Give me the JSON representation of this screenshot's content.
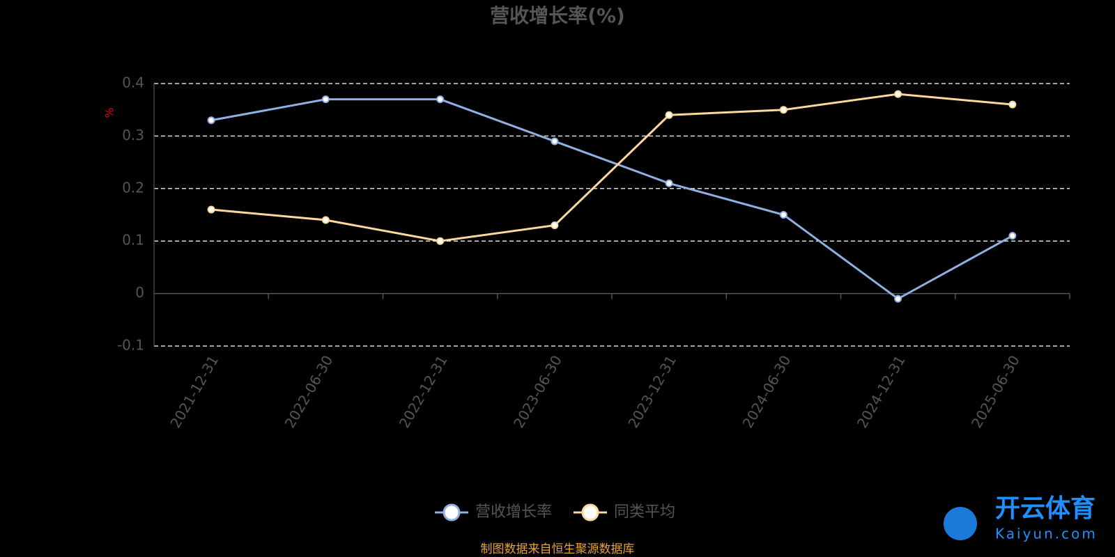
{
  "chart_data": {
    "type": "line",
    "title": "营收增长率(%)",
    "y_label": "%",
    "categories": [
      "2021-12-31",
      "2022-06-30",
      "2022-12-31",
      "2023-06-30",
      "2023-12-31",
      "2024-06-30",
      "2024-12-31",
      "2025-06-30"
    ],
    "series": [
      {
        "name": "营收增长率",
        "color": "#8fb0e0",
        "values": [
          0.33,
          0.37,
          0.37,
          0.29,
          0.21,
          0.15,
          -0.01,
          0.11
        ]
      },
      {
        "name": "同类平均",
        "color": "#fbd89b",
        "values": [
          0.16,
          0.14,
          0.1,
          0.13,
          0.34,
          0.35,
          0.38,
          0.36
        ]
      }
    ],
    "ylim": [
      -0.1,
      0.4
    ],
    "yticks": [
      -0.1,
      0,
      0.1,
      0.2,
      0.3,
      0.4
    ],
    "grid": true,
    "legend": "bottom",
    "source": "制图数据来自恒生聚源数据库",
    "watermark": "开云体育",
    "watermark_url": "Kaiyun.com"
  }
}
